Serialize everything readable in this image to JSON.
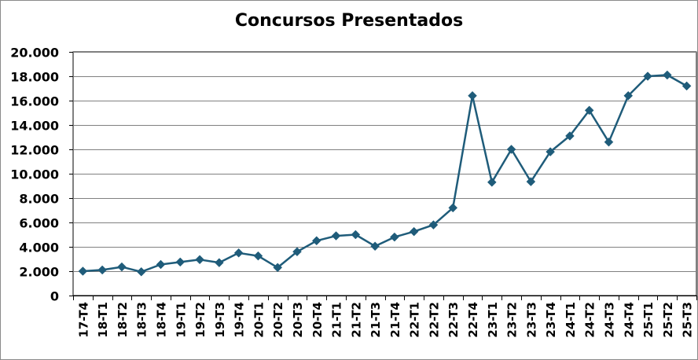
{
  "chart_data": {
    "type": "line",
    "title": "Concursos Presentados",
    "xlabel": "",
    "ylabel": "",
    "ylim": [
      0,
      20000
    ],
    "yticks": [
      0,
      2000,
      4000,
      6000,
      8000,
      10000,
      12000,
      14000,
      16000,
      18000,
      20000
    ],
    "ytick_labels": [
      "0",
      "2.000",
      "4.000",
      "6.000",
      "8.000",
      "10.000",
      "12.000",
      "14.000",
      "16.000",
      "18.000",
      "20.000"
    ],
    "grid": true,
    "legend": "none",
    "categories": [
      "17-T4",
      "18-T1",
      "18-T2",
      "18-T3",
      "18-T4",
      "19-T1",
      "19-T2",
      "19-T3",
      "19-T4",
      "20-T1",
      "20-T2",
      "20-T3",
      "20-T4",
      "21-T1",
      "21-T2",
      "21-T3",
      "21-T4",
      "22-T1",
      "22-T2",
      "22-T3",
      "22-T4",
      "23-T1",
      "23-T2",
      "23-T3",
      "23-T4",
      "24-T1",
      "24-T2",
      "24-T3",
      "24-T4",
      "25-T1",
      "25-T2",
      "25-T3"
    ],
    "series": [
      {
        "color": "#1f5c7a",
        "marker": "diamond",
        "values": [
          2000,
          2100,
          2350,
          1950,
          2550,
          2750,
          2950,
          2700,
          3500,
          3250,
          2300,
          3600,
          4500,
          4900,
          5000,
          4050,
          4800,
          5250,
          5800,
          7200,
          16400,
          9300,
          12000,
          9350,
          11800,
          13100,
          15200,
          12600,
          16400,
          18000,
          18100,
          17200
        ]
      }
    ]
  }
}
